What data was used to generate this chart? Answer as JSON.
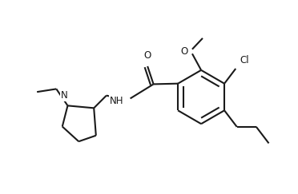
{
  "bg_color": "#ffffff",
  "line_color": "#1a1a1a",
  "line_width": 1.5,
  "fig_width": 3.72,
  "fig_height": 2.43,
  "dpi": 100,
  "xlim": [
    0,
    10
  ],
  "ylim": [
    0,
    6.5
  ]
}
